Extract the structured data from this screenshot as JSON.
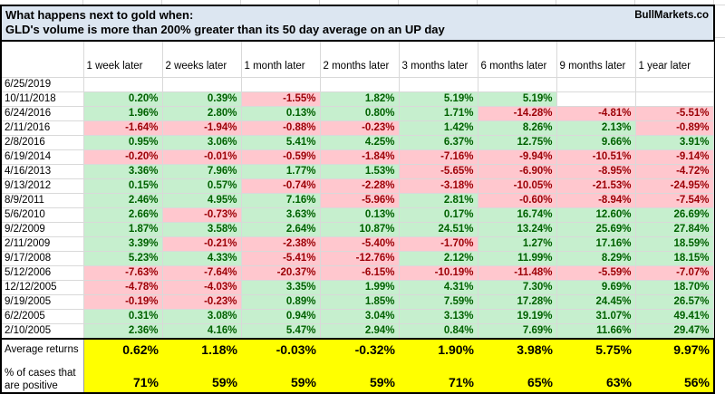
{
  "title": {
    "line1": "What happens next to gold when:",
    "line2": "GLD's volume is more than 200% greater than its 50 day average on an UP day",
    "brand": "BullMarkets.co"
  },
  "colors": {
    "header_bg": "#dce6f1",
    "positive_fill": "#c6efce",
    "positive_text": "#006100",
    "negative_fill": "#ffc7ce",
    "negative_text": "#9c0006",
    "summary_fill": "#ffff00",
    "gridline": "#d9d9d9",
    "border": "#000000"
  },
  "chart_data": {
    "type": "table",
    "columns": [
      "1 week later",
      "2 weeks later",
      "1 month later",
      "2 months later",
      "3 months later",
      "6 months later",
      "9 months later",
      "1 year later"
    ],
    "rows": [
      {
        "date": "6/25/2019",
        "values": [
          "",
          "",
          "",
          "",
          "",
          "",
          "",
          ""
        ]
      },
      {
        "date": "10/11/2018",
        "values": [
          "0.20%",
          "0.39%",
          "-1.55%",
          "1.82%",
          "5.19%",
          "5.19%",
          "",
          ""
        ]
      },
      {
        "date": "6/24/2016",
        "values": [
          "1.96%",
          "2.80%",
          "0.13%",
          "0.80%",
          "1.71%",
          "-14.28%",
          "-4.81%",
          "-5.51%"
        ]
      },
      {
        "date": "2/11/2016",
        "values": [
          "-1.64%",
          "-1.94%",
          "-0.88%",
          "-0.23%",
          "1.42%",
          "8.26%",
          "2.13%",
          "-0.89%"
        ]
      },
      {
        "date": "2/8/2016",
        "values": [
          "0.95%",
          "3.06%",
          "5.41%",
          "4.25%",
          "6.37%",
          "12.75%",
          "9.66%",
          "3.91%"
        ]
      },
      {
        "date": "6/19/2014",
        "values": [
          "-0.20%",
          "-0.01%",
          "-0.59%",
          "-1.84%",
          "-7.16%",
          "-9.94%",
          "-10.51%",
          "-9.14%"
        ]
      },
      {
        "date": "4/16/2013",
        "values": [
          "3.36%",
          "7.96%",
          "1.77%",
          "1.53%",
          "-5.65%",
          "-6.90%",
          "-8.95%",
          "-4.72%"
        ]
      },
      {
        "date": "9/13/2012",
        "values": [
          "0.15%",
          "0.57%",
          "-0.74%",
          "-2.28%",
          "-3.18%",
          "-10.05%",
          "-21.53%",
          "-24.95%"
        ]
      },
      {
        "date": "8/9/2011",
        "values": [
          "2.46%",
          "4.95%",
          "7.16%",
          "-5.96%",
          "2.81%",
          "-0.60%",
          "-8.94%",
          "-7.54%"
        ]
      },
      {
        "date": "5/6/2010",
        "values": [
          "2.66%",
          "-0.73%",
          "3.63%",
          "0.13%",
          "0.17%",
          "16.74%",
          "12.60%",
          "26.69%"
        ]
      },
      {
        "date": "9/2/2009",
        "values": [
          "1.87%",
          "3.58%",
          "2.64%",
          "10.87%",
          "24.51%",
          "13.24%",
          "25.69%",
          "27.84%"
        ]
      },
      {
        "date": "2/11/2009",
        "values": [
          "3.39%",
          "-0.21%",
          "-2.38%",
          "-5.40%",
          "-1.70%",
          "1.27%",
          "17.16%",
          "18.59%"
        ]
      },
      {
        "date": "9/17/2008",
        "values": [
          "5.23%",
          "4.33%",
          "-5.41%",
          "-12.76%",
          "2.12%",
          "11.99%",
          "8.29%",
          "18.15%"
        ]
      },
      {
        "date": "5/12/2006",
        "values": [
          "-7.63%",
          "-7.64%",
          "-20.37%",
          "-6.15%",
          "-10.19%",
          "-11.48%",
          "-5.59%",
          "-7.07%"
        ]
      },
      {
        "date": "12/12/2005",
        "values": [
          "-4.78%",
          "-4.03%",
          "3.35%",
          "1.99%",
          "4.31%",
          "7.30%",
          "9.69%",
          "18.70%"
        ]
      },
      {
        "date": "9/19/2005",
        "values": [
          "-0.19%",
          "-0.23%",
          "0.89%",
          "1.85%",
          "7.59%",
          "17.28%",
          "24.45%",
          "26.57%"
        ]
      },
      {
        "date": "6/2/2005",
        "values": [
          "0.31%",
          "3.08%",
          "0.94%",
          "3.04%",
          "3.13%",
          "19.19%",
          "31.07%",
          "49.41%"
        ]
      },
      {
        "date": "2/10/2005",
        "values": [
          "2.36%",
          "4.16%",
          "5.47%",
          "2.94%",
          "0.84%",
          "7.69%",
          "11.66%",
          "29.47%"
        ]
      }
    ],
    "average_label": "Average returns",
    "averages": [
      "0.62%",
      "1.18%",
      "-0.03%",
      "-0.32%",
      "1.90%",
      "3.98%",
      "5.75%",
      "9.97%"
    ],
    "positive_label_line1": "% of cases that",
    "positive_label_line2": "are positive",
    "positive_values": [
      "71%",
      "59%",
      "59%",
      "59%",
      "71%",
      "65%",
      "63%",
      "56%"
    ]
  }
}
